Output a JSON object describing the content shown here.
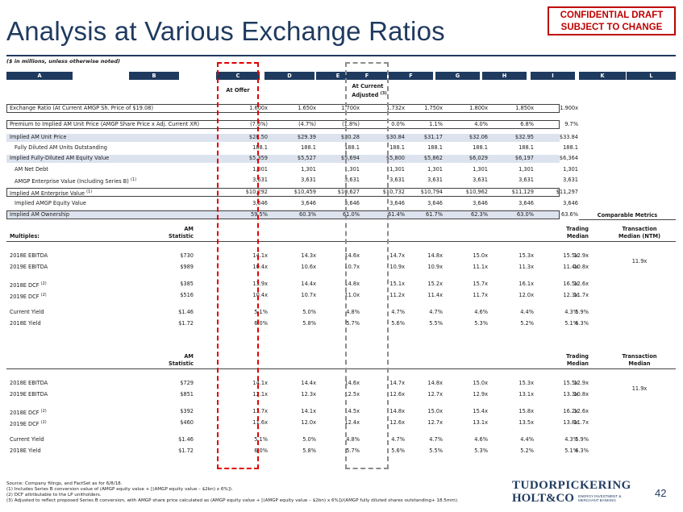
{
  "title": "Analysis at Various Exchange Ratios",
  "confidential": [
    "CONFIDENTIAL DRAFT",
    "SUBJECT TO CHANGE"
  ],
  "units_note": "($ in millions, unless otherwise noted)",
  "col_letters": [
    "A",
    "B",
    "C",
    "D",
    "E",
    "F",
    "F",
    "G",
    "H",
    "I",
    "K",
    "L"
  ],
  "at_offer": "At Offer",
  "at_current": "At Current",
  "adjusted": "Adjusted",
  "adj_sup": "(3)",
  "top_rows": [
    {
      "label": "Exchange Ratio (At Current AMGP Sh. Price of $19.08)",
      "vals": [
        "1.600x",
        "1.650x",
        "1.700x",
        "1.732x",
        "1.750x",
        "1.800x",
        "1.850x",
        "1.900x"
      ]
    },
    {
      "label": "Premium to Implied AM Unit Price (AMGP Share Price x Adj. Current XR)",
      "vals": [
        "(7.6%)",
        "(4.7%)",
        "(1.8%)",
        "0.0%",
        "1.1%",
        "4.0%",
        "6.8%",
        "9.7%"
      ]
    },
    {
      "label": "Implied AM Unit Price",
      "vals": [
        "$28.50",
        "$29.39",
        "$30.28",
        "$30.84",
        "$31.17",
        "$32.06",
        "$32.95",
        "$33.84"
      ]
    },
    {
      "label": "Fully Diluted AM Units Outstanding",
      "vals": [
        "188.1",
        "188.1",
        "188.1",
        "188.1",
        "188.1",
        "188.1",
        "188.1",
        "188.1"
      ]
    },
    {
      "label": "Implied Fully-Diluted AM Equity Value",
      "vals": [
        "$5,359",
        "$5,527",
        "$5,694",
        "$5,800",
        "$5,862",
        "$6,029",
        "$6,197",
        "$6,364"
      ]
    },
    {
      "label": "AM Net Debt",
      "vals": [
        "1,301",
        "1,301",
        "1,301",
        "1,301",
        "1,301",
        "1,301",
        "1,301",
        "1,301"
      ]
    },
    {
      "label": "AMGP Enterprise Value (Including Series B)",
      "sup": "(1)",
      "vals": [
        "3,631",
        "3,631",
        "3,631",
        "3,631",
        "3,631",
        "3,631",
        "3,631",
        "3,631"
      ]
    },
    {
      "label": "Implied AM Enterprise Value",
      "sup": "(1)",
      "vals": [
        "$10,292",
        "$10,459",
        "$10,627",
        "$10,732",
        "$10,794",
        "$10,962",
        "$11,129",
        "$11,297"
      ]
    },
    {
      "label": "Implied AMGP Equity Value",
      "vals": [
        "3,646",
        "3,646",
        "3,646",
        "3,646",
        "3,646",
        "3,646",
        "3,646",
        "3,646"
      ]
    },
    {
      "label": "Implied AM Ownership",
      "vals": [
        "59.5%",
        "60.3%",
        "61.0%",
        "61.4%",
        "61.7%",
        "62.3%",
        "63.0%",
        "63.6%"
      ]
    }
  ],
  "comparable_metrics": "Comparable Metrics",
  "sec1": {
    "h_am": "AM",
    "h_stat": "Statistic",
    "h_mult": "Multiples:",
    "h_trading": "Trading",
    "h_median": "Median",
    "h_transaction": "Transaction",
    "h_median_ntm": "Median (NTM)",
    "rows": [
      {
        "label": "2018E EBITDA",
        "stat": "$730",
        "vals": [
          "14.1x",
          "14.3x",
          "14.6x",
          "14.7x",
          "14.8x",
          "15.0x",
          "15.3x",
          "15.5x"
        ],
        "trading": "12.9x"
      },
      {
        "label": "2019E EBITDA",
        "stat": "$989",
        "vals": [
          "10.4x",
          "10.6x",
          "10.7x",
          "10.9x",
          "10.9x",
          "11.1x",
          "11.3x",
          "11.4x"
        ],
        "trading": "10.8x"
      },
      {
        "label": "2018E DCF",
        "sup": "(2)",
        "stat": "$385",
        "vals": [
          "13.9x",
          "14.4x",
          "14.8x",
          "15.1x",
          "15.2x",
          "15.7x",
          "16.1x",
          "16.5x"
        ],
        "trading": "12.6x"
      },
      {
        "label": "2019E DCF",
        "sup": "(2)",
        "stat": "$516",
        "vals": [
          "10.4x",
          "10.7x",
          "11.0x",
          "11.2x",
          "11.4x",
          "11.7x",
          "12.0x",
          "12.3x"
        ],
        "trading": "11.7x"
      },
      {
        "label": "Current Yield",
        "stat": "$1.46",
        "vals": [
          "5.1%",
          "5.0%",
          "4.8%",
          "4.7%",
          "4.7%",
          "4.6%",
          "4.4%",
          "4.3%"
        ],
        "trading": "5.9%"
      },
      {
        "label": "2018E Yield",
        "stat": "$1.72",
        "vals": [
          "6.0%",
          "5.8%",
          "5.7%",
          "5.6%",
          "5.5%",
          "5.3%",
          "5.2%",
          "5.1%"
        ],
        "trading": "6.3%"
      }
    ],
    "transaction": "11.9x"
  },
  "sec2": {
    "h_am": "AM",
    "h_stat": "Statistic",
    "h_trading": "Trading",
    "h_median": "Median",
    "h_transaction": "Transaction",
    "h_median2": "Median",
    "rows": [
      {
        "label": "2018E EBITDA",
        "stat": "$729",
        "vals": [
          "14.1x",
          "14.4x",
          "14.6x",
          "14.7x",
          "14.8x",
          "15.0x",
          "15.3x",
          "15.5x"
        ],
        "trading": "12.9x"
      },
      {
        "label": "2019E EBITDA",
        "stat": "$851",
        "vals": [
          "12.1x",
          "12.3x",
          "12.5x",
          "12.6x",
          "12.7x",
          "12.9x",
          "13.1x",
          "13.3x"
        ],
        "trading": "10.8x"
      },
      {
        "label": "2018E DCF",
        "sup": "(2)",
        "stat": "$392",
        "vals": [
          "13.7x",
          "14.1x",
          "14.5x",
          "14.8x",
          "15.0x",
          "15.4x",
          "15.8x",
          "16.2x"
        ],
        "trading": "12.6x"
      },
      {
        "label": "2019E DCF",
        "sup": "(2)",
        "stat": "$460",
        "vals": [
          "11.6x",
          "12.0x",
          "12.4x",
          "12.6x",
          "12.7x",
          "13.1x",
          "13.5x",
          "13.8x"
        ],
        "trading": "11.7x"
      },
      {
        "label": "Current Yield",
        "stat": "$1.46",
        "vals": [
          "5.1%",
          "5.0%",
          "4.8%",
          "4.7%",
          "4.7%",
          "4.6%",
          "4.4%",
          "4.3%"
        ],
        "trading": "5.9%"
      },
      {
        "label": "2018E Yield",
        "stat": "$1.72",
        "vals": [
          "6.0%",
          "5.8%",
          "5.7%",
          "5.6%",
          "5.5%",
          "5.3%",
          "5.2%",
          "5.1%"
        ],
        "trading": "6.3%"
      }
    ],
    "transaction": "11.9x"
  },
  "footnotes": [
    "Source: Company filings, and FactSet as for 6/8/18.",
    "(1)      Includes Series B conversion value of (AMGP equity value + [(AMGP equity value – $2bn) x 6%]).",
    "(2)      DCF attributable to the LP unitholders.",
    "(3)      Adjusted to reflect proposed Series B conversion, with AMGP share price calculated as (AMGP equity value + [(AMGP equity value – $2bn) x 6%])/(AMGP fully diluted shares outstanding+ 18.5mm)."
  ],
  "logo": {
    "line1": "TUDORPICKERING",
    "line2": "HOLT&CO",
    "sub1": "ENERGY INVESTMENT &",
    "sub2": "MERCHANT BANKING"
  },
  "page_number": "42"
}
